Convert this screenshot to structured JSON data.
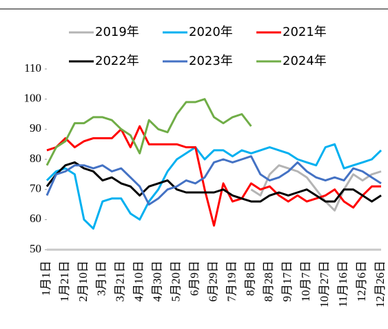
{
  "chart_data": {
    "type": "line",
    "categories": [
      "1月1日",
      null,
      "1月21日",
      null,
      "2月10日",
      null,
      "3月1日",
      null,
      "3月21日",
      null,
      "4月10日",
      null,
      "4月30日",
      null,
      "5月20日",
      null,
      "6月9日",
      null,
      "6月29日",
      null,
      "7月19日",
      null,
      "8月8日",
      null,
      "8月28日",
      null,
      "9月17日",
      null,
      "10月7日",
      null,
      "10月27日",
      null,
      "11月16日",
      null,
      "12月6日",
      null,
      "12月26日"
    ],
    "ylim": [
      50,
      110
    ],
    "yticks": [
      50,
      60,
      70,
      80,
      90,
      100,
      110
    ],
    "grid": false,
    "series": [
      {
        "name": "2019年",
        "color": "#b4b4b4",
        "values": [
          null,
          null,
          null,
          null,
          null,
          null,
          null,
          null,
          null,
          null,
          null,
          null,
          null,
          null,
          null,
          null,
          null,
          null,
          null,
          null,
          null,
          null,
          70,
          68,
          75,
          78,
          77,
          76,
          74,
          70,
          66,
          63,
          70,
          75,
          73,
          75,
          76
        ]
      },
      {
        "name": "2020年",
        "color": "#00b0f0",
        "values": [
          73,
          76,
          77,
          75,
          60,
          57,
          66,
          67,
          67,
          62,
          60,
          66,
          70,
          76,
          80,
          82,
          84,
          80,
          83,
          83,
          81,
          83,
          82,
          83,
          84,
          83,
          82,
          80,
          79,
          78,
          84,
          85,
          77,
          78,
          79,
          80,
          83
        ]
      },
      {
        "name": "2021年",
        "color": "#ff0000",
        "values": [
          83,
          84,
          87,
          84,
          86,
          87,
          87,
          87,
          90,
          84,
          91,
          85,
          85,
          85,
          85,
          84,
          84,
          70,
          58,
          72,
          66,
          67,
          72,
          70,
          71,
          68,
          66,
          68,
          66,
          67,
          68,
          70,
          66,
          64,
          68,
          71,
          71
        ]
      },
      {
        "name": "2022年",
        "color": "#000000",
        "values": [
          71,
          75,
          78,
          79,
          77,
          76,
          73,
          74,
          72,
          71,
          68,
          71,
          72,
          73,
          70,
          69,
          69,
          69,
          69,
          70,
          68,
          67,
          66,
          66,
          68,
          69,
          68,
          69,
          70,
          68,
          66,
          66,
          70,
          70,
          68,
          66,
          68
        ]
      },
      {
        "name": "2023年",
        "color": "#4472c4",
        "values": [
          68,
          75,
          76,
          78,
          78,
          77,
          78,
          76,
          77,
          74,
          71,
          65,
          67,
          70,
          71,
          73,
          72,
          74,
          79,
          80,
          79,
          80,
          81,
          75,
          73,
          74,
          76,
          79,
          76,
          74,
          73,
          74,
          73,
          77,
          76,
          74,
          72
        ]
      },
      {
        "name": "2024年",
        "color": "#70ad47",
        "values": [
          78,
          84,
          86,
          92,
          92,
          94,
          94,
          93,
          90,
          88,
          82,
          93,
          90,
          89,
          95,
          99,
          99,
          100,
          94,
          92,
          94,
          95,
          91,
          null,
          null,
          null,
          null,
          null,
          null,
          null,
          null,
          null,
          null,
          null,
          null,
          null,
          null
        ]
      }
    ]
  }
}
